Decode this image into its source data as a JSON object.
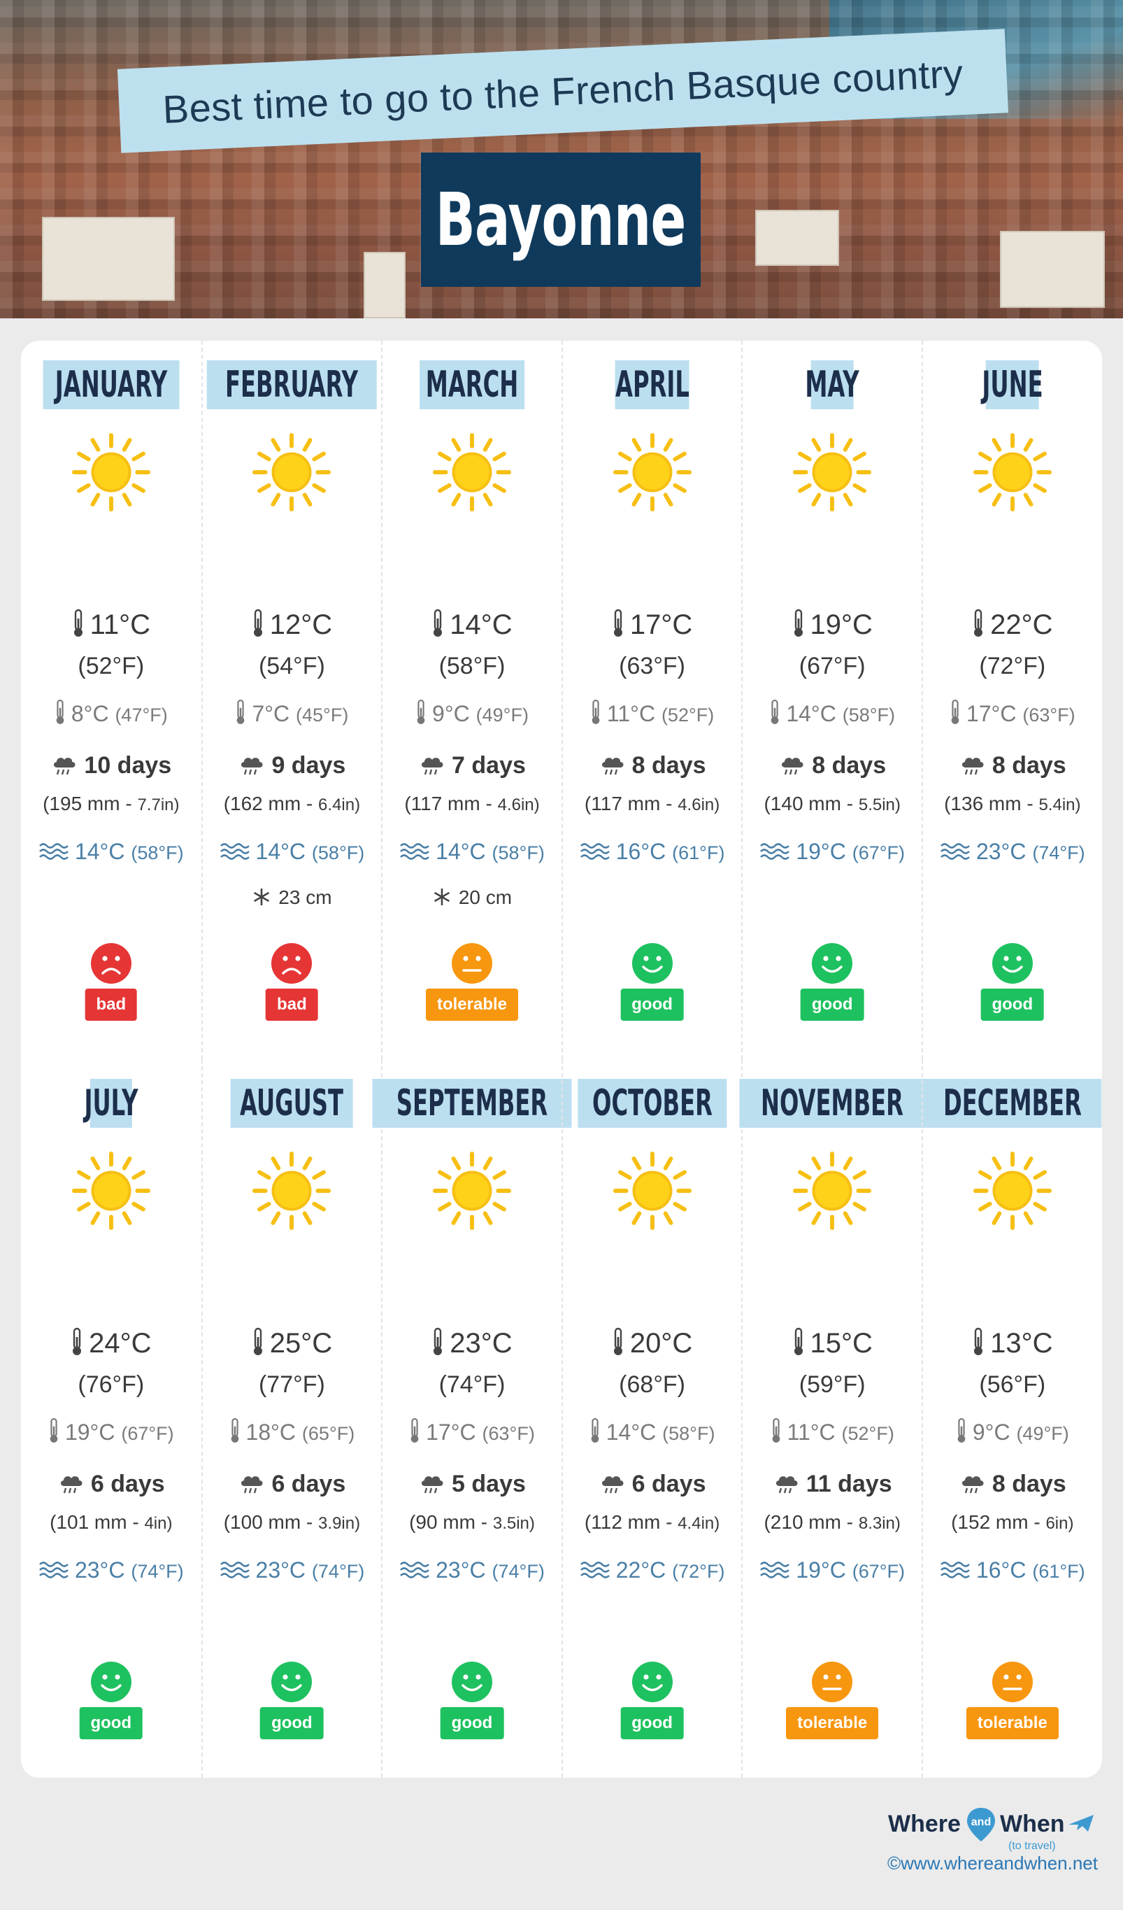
{
  "header": {
    "subtitle": "Best time to go to the French Basque country",
    "title": "Bayonne"
  },
  "colors": {
    "good": "#1ec15f",
    "tolerable": "#f7960f",
    "bad": "#e63535",
    "sea": "#4a7fa6",
    "month_label_bg": "#bcdff0",
    "title_bg": "#0f3a5c"
  },
  "icons": [
    "sun-icon",
    "thermometer-icon",
    "rain-cloud-icon",
    "waves-icon",
    "snowflake-icon",
    "smiley-icon",
    "plane-icon"
  ],
  "months": [
    {
      "name": "JANUARY",
      "tmax": "11°C",
      "tmax_f": "(52°F)",
      "tmin": "8°C",
      "tmin_f": "(47°F)",
      "rain_days": "10 days",
      "rain_mm": "(195 mm - ",
      "rain_in": "7.7in)",
      "sea": "14°C",
      "sea_f": "(58°F)",
      "snow": "",
      "rating": "bad",
      "mood": "sad"
    },
    {
      "name": "FEBRUARY",
      "tmax": "12°C",
      "tmax_f": "(54°F)",
      "tmin": "7°C",
      "tmin_f": "(45°F)",
      "rain_days": "9 days",
      "rain_mm": "(162 mm - ",
      "rain_in": "6.4in)",
      "sea": "14°C",
      "sea_f": "(58°F)",
      "snow": "23 cm",
      "rating": "bad",
      "mood": "sad"
    },
    {
      "name": "MARCH",
      "tmax": "14°C",
      "tmax_f": "(58°F)",
      "tmin": "9°C",
      "tmin_f": "(49°F)",
      "rain_days": "7 days",
      "rain_mm": "(117 mm - ",
      "rain_in": "4.6in)",
      "sea": "14°C",
      "sea_f": "(58°F)",
      "snow": "20 cm",
      "rating": "tolerable",
      "mood": "neutral"
    },
    {
      "name": "APRIL",
      "tmax": "17°C",
      "tmax_f": "(63°F)",
      "tmin": "11°C",
      "tmin_f": "(52°F)",
      "rain_days": "8 days",
      "rain_mm": "(117 mm - ",
      "rain_in": "4.6in)",
      "sea": "16°C",
      "sea_f": "(61°F)",
      "snow": "",
      "rating": "good",
      "mood": "happy"
    },
    {
      "name": "MAY",
      "tmax": "19°C",
      "tmax_f": "(67°F)",
      "tmin": "14°C",
      "tmin_f": "(58°F)",
      "rain_days": "8 days",
      "rain_mm": "(140 mm - ",
      "rain_in": "5.5in)",
      "sea": "19°C",
      "sea_f": "(67°F)",
      "snow": "",
      "rating": "good",
      "mood": "happy"
    },
    {
      "name": "JUNE",
      "tmax": "22°C",
      "tmax_f": "(72°F)",
      "tmin": "17°C",
      "tmin_f": "(63°F)",
      "rain_days": "8 days",
      "rain_mm": "(136 mm - ",
      "rain_in": "5.4in)",
      "sea": "23°C",
      "sea_f": "(74°F)",
      "snow": "",
      "rating": "good",
      "mood": "happy"
    },
    {
      "name": "JULY",
      "tmax": "24°C",
      "tmax_f": "(76°F)",
      "tmin": "19°C",
      "tmin_f": "(67°F)",
      "rain_days": "6 days",
      "rain_mm": "(101 mm - ",
      "rain_in": "4in)",
      "sea": "23°C",
      "sea_f": "(74°F)",
      "snow": "",
      "rating": "good",
      "mood": "happy"
    },
    {
      "name": "AUGUST",
      "tmax": "25°C",
      "tmax_f": "(77°F)",
      "tmin": "18°C",
      "tmin_f": "(65°F)",
      "rain_days": "6 days",
      "rain_mm": "(100 mm - ",
      "rain_in": "3.9in)",
      "sea": "23°C",
      "sea_f": "(74°F)",
      "snow": "",
      "rating": "good",
      "mood": "happy"
    },
    {
      "name": "SEPTEMBER",
      "tmax": "23°C",
      "tmax_f": "(74°F)",
      "tmin": "17°C",
      "tmin_f": "(63°F)",
      "rain_days": "5 days",
      "rain_mm": "(90 mm - ",
      "rain_in": "3.5in)",
      "sea": "23°C",
      "sea_f": "(74°F)",
      "snow": "",
      "rating": "good",
      "mood": "happy"
    },
    {
      "name": "OCTOBER",
      "tmax": "20°C",
      "tmax_f": "(68°F)",
      "tmin": "14°C",
      "tmin_f": "(58°F)",
      "rain_days": "6 days",
      "rain_mm": "(112 mm - ",
      "rain_in": "4.4in)",
      "sea": "22°C",
      "sea_f": "(72°F)",
      "snow": "",
      "rating": "good",
      "mood": "happy"
    },
    {
      "name": "NOVEMBER",
      "tmax": "15°C",
      "tmax_f": "(59°F)",
      "tmin": "11°C",
      "tmin_f": "(52°F)",
      "rain_days": "11 days",
      "rain_mm": "(210 mm - ",
      "rain_in": "8.3in)",
      "sea": "19°C",
      "sea_f": "(67°F)",
      "snow": "",
      "rating": "tolerable",
      "mood": "neutral"
    },
    {
      "name": "DECEMBER",
      "tmax": "13°C",
      "tmax_f": "(56°F)",
      "tmin": "9°C",
      "tmin_f": "(49°F)",
      "rain_days": "8 days",
      "rain_mm": "(152 mm - ",
      "rain_in": "6in)",
      "sea": "16°C",
      "sea_f": "(61°F)",
      "snow": "",
      "rating": "tolerable",
      "mood": "neutral"
    }
  ],
  "footer": {
    "logo_where": "Where",
    "logo_and": "and",
    "logo_when": "When",
    "logo_tag": "(to travel)",
    "copyright": "©www.whereandwhen.net"
  }
}
